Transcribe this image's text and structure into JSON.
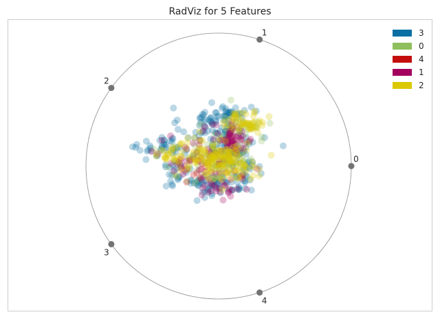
{
  "chart_data": {
    "type": "scatter",
    "title": "RadViz for 5 Features",
    "xlabel": "",
    "ylabel": "",
    "xlim": [
      -1.0,
      1.0
    ],
    "ylim": [
      -1.0,
      1.0
    ],
    "grid": false,
    "legend_position": "top-right",
    "features": [
      {
        "label": "0",
        "angle_deg": 0
      },
      {
        "label": "1",
        "angle_deg": 72
      },
      {
        "label": "2",
        "angle_deg": 144
      },
      {
        "label": "3",
        "angle_deg": 216
      },
      {
        "label": "4",
        "angle_deg": 288
      }
    ],
    "series": [
      {
        "name": "3",
        "color": "#0a6fa3",
        "clusters": [
          {
            "cx": -0.05,
            "cy": 0.3,
            "sx": 0.12,
            "sy": 0.07,
            "n": 70
          },
          {
            "cx": 0.1,
            "cy": 0.09,
            "sx": 0.12,
            "sy": 0.08,
            "n": 80
          },
          {
            "cx": 0.0,
            "cy": -0.13,
            "sx": 0.14,
            "sy": 0.05,
            "n": 70
          },
          {
            "cx": -0.4,
            "cy": 0.14,
            "sx": 0.1,
            "sy": 0.04,
            "n": 40
          },
          {
            "cx": -0.3,
            "cy": -0.05,
            "sx": 0.07,
            "sy": 0.05,
            "n": 25
          },
          {
            "cx": 0.08,
            "cy": 0.4,
            "sx": 0.08,
            "sy": 0.04,
            "n": 30
          }
        ]
      },
      {
        "name": "0",
        "color": "#8fbf5c",
        "clusters": [
          {
            "cx": -0.05,
            "cy": 0.05,
            "sx": 0.18,
            "sy": 0.1,
            "n": 50
          },
          {
            "cx": 0.2,
            "cy": 0.3,
            "sx": 0.1,
            "sy": 0.07,
            "n": 20
          }
        ]
      },
      {
        "name": "4",
        "color": "#c40e0e",
        "clusters": [
          {
            "cx": 0.0,
            "cy": 0.0,
            "sx": 0.18,
            "sy": 0.1,
            "n": 20
          }
        ]
      },
      {
        "name": "1",
        "color": "#a3005e",
        "clusters": [
          {
            "cx": 0.1,
            "cy": 0.2,
            "sx": 0.08,
            "sy": 0.06,
            "n": 60
          },
          {
            "cx": -0.15,
            "cy": 0.05,
            "sx": 0.15,
            "sy": 0.08,
            "n": 40
          },
          {
            "cx": 0.0,
            "cy": -0.17,
            "sx": 0.08,
            "sy": 0.04,
            "n": 25
          }
        ]
      },
      {
        "name": "2",
        "color": "#dbc800",
        "clusters": [
          {
            "cx": 0.05,
            "cy": 0.02,
            "sx": 0.12,
            "sy": 0.06,
            "n": 130
          },
          {
            "cx": -0.13,
            "cy": 0.1,
            "sx": 0.12,
            "sy": 0.07,
            "n": 70
          },
          {
            "cx": 0.2,
            "cy": 0.33,
            "sx": 0.08,
            "sy": 0.04,
            "n": 60
          },
          {
            "cx": -0.4,
            "cy": 0.1,
            "sx": 0.05,
            "sy": 0.03,
            "n": 15
          }
        ]
      }
    ]
  }
}
